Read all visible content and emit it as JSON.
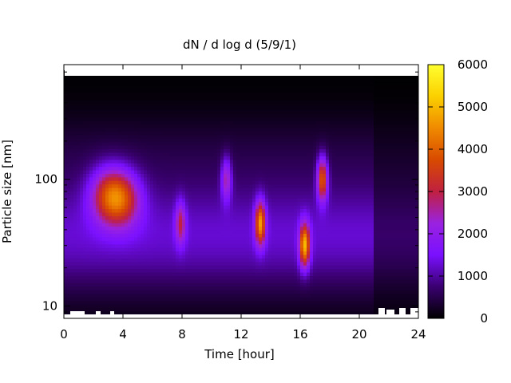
{
  "chart_data": {
    "type": "heatmap",
    "title": "dN / d log d (5/9/1)",
    "xlabel": "Time [hour]",
    "ylabel": "Particle size [nm]",
    "x_ticks": [
      0,
      4,
      8,
      12,
      16,
      20,
      24
    ],
    "y_ticks": [
      10,
      100
    ],
    "y_scale": "log",
    "xlim": [
      0,
      24
    ],
    "ylim": [
      8,
      800
    ],
    "colorbar": {
      "ticks": [
        0,
        1000,
        2000,
        3000,
        4000,
        5000,
        6000
      ],
      "range": [
        0,
        6000
      ],
      "palette": [
        "#000000",
        "#3a0070",
        "#7a10ff",
        "#9a22e0",
        "#c02040",
        "#d84a00",
        "#f08a00",
        "#fbd000",
        "#ffff30"
      ]
    },
    "grid": false,
    "features": [
      {
        "t": 3.0,
        "d": 75,
        "peak": 3400
      },
      {
        "t": 4.0,
        "d": 70,
        "peak": 3300
      },
      {
        "t": 7.9,
        "d": 45,
        "peak": 3000
      },
      {
        "t": 11.0,
        "d": 100,
        "peak": 3000
      },
      {
        "t": 13.3,
        "d": 45,
        "peak": 4700
      },
      {
        "t": 16.3,
        "d": 30,
        "peak": 5000
      },
      {
        "t": 17.5,
        "d": 100,
        "peak": 4400
      }
    ]
  }
}
